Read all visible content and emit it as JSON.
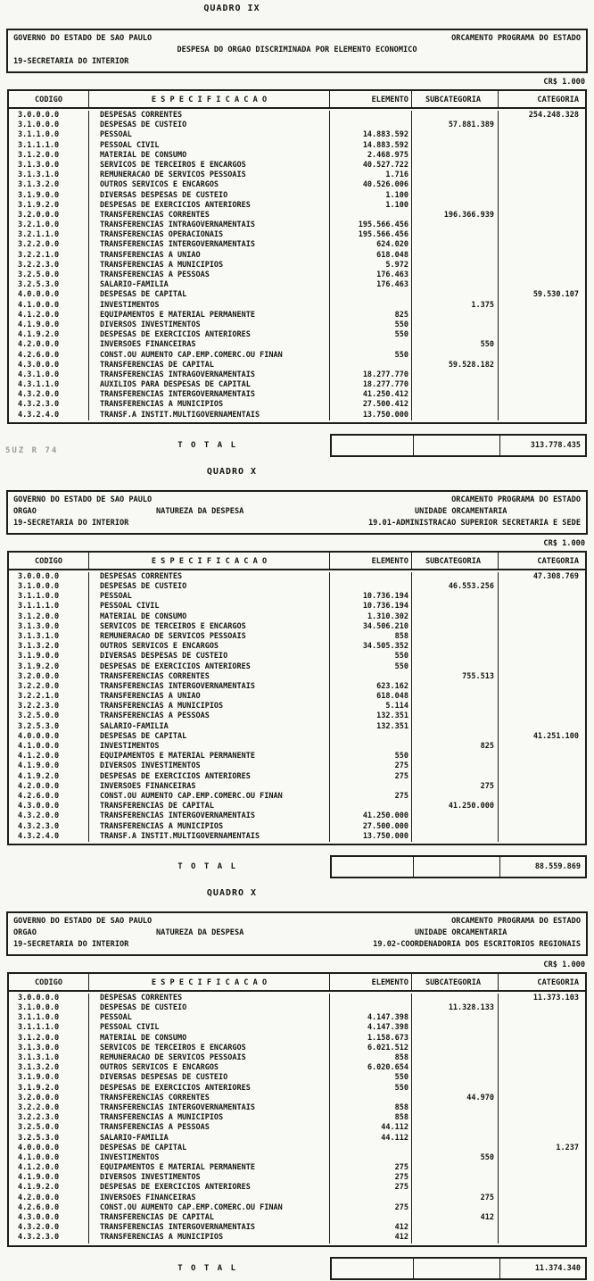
{
  "page": {
    "currency_note": "CR$ 1.000",
    "total_label": "T O T A L",
    "artifact_text": "5UZ R 74"
  },
  "columns": {
    "codigo": "CODIGO",
    "especificacao": "E S P E C I F I C A C A O",
    "elemento": "ELEMENTO",
    "subcategoria": "SUBCATEGORIA",
    "categoria": "CATEGORIA"
  },
  "quadros": [
    {
      "title": "QUADRO IX",
      "header": {
        "org_left": "GOVERNO DO ESTADO DE SAO PAULO",
        "program_right": "ORCAMENTO PROGRAMA DO ESTADO",
        "subtitle": "DESPESA DO ORGAO DISCRIMINADA POR ELEMENTO ECONOMICO",
        "orgao_value": "19-SECRETARIA DO INTERIOR"
      },
      "rows": [
        [
          "3.0.0.0.0",
          "DESPESAS CORRENTES",
          "",
          "",
          "254.248.328"
        ],
        [
          "3.1.0.0.0",
          "DESPESAS DE CUSTEIO",
          "",
          "57.881.389",
          ""
        ],
        [
          "3.1.1.0.0",
          "PESSOAL",
          "14.883.592",
          "",
          ""
        ],
        [
          "3.1.1.1.0",
          "PESSOAL CIVIL",
          "14.883.592",
          "",
          ""
        ],
        [
          "3.1.2.0.0",
          "MATERIAL DE CONSUMO",
          "2.468.975",
          "",
          ""
        ],
        [
          "3.1.3.0.0",
          "SERVICOS DE TERCEIROS E ENCARGOS",
          "40.527.722",
          "",
          ""
        ],
        [
          "3.1.3.1.0",
          "REMUNERACAO DE SERVICOS PESSOAIS",
          "1.716",
          "",
          ""
        ],
        [
          "3.1.3.2.0",
          "OUTROS SERVICOS E ENCARGOS",
          "40.526.006",
          "",
          ""
        ],
        [
          "3.1.9.0.0",
          "DIVERSAS DESPESAS DE CUSTEIO",
          "1.100",
          "",
          ""
        ],
        [
          "3.1.9.2.0",
          "DESPESAS DE EXERCICIOS ANTERIORES",
          "1.100",
          "",
          ""
        ],
        [
          "3.2.0.0.0",
          "TRANSFERENCIAS CORRENTES",
          "",
          "196.366.939",
          ""
        ],
        [
          "3.2.1.0.0",
          "TRANSFERENCIAS INTRAGOVERNAMENTAIS",
          "195.566.456",
          "",
          ""
        ],
        [
          "3.2.1.1.0",
          "TRANSFERENCIAS OPERACIONAIS",
          "195.566.456",
          "",
          ""
        ],
        [
          "3.2.2.0.0",
          "TRANSFERENCIAS INTERGOVERNAMENTAIS",
          "624.020",
          "",
          ""
        ],
        [
          "3.2.2.1.0",
          "TRANSFERENCIAS A UNIAO",
          "618.048",
          "",
          ""
        ],
        [
          "3.2.2.3.0",
          "TRANSFERENCIAS A MUNICIPIOS",
          "5.972",
          "",
          ""
        ],
        [
          "3.2.5.0.0",
          "TRANSFERENCIAS A PESSOAS",
          "176.463",
          "",
          ""
        ],
        [
          "3.2.5.3.0",
          "SALARIO-FAMILIA",
          "176.463",
          "",
          ""
        ],
        [
          "4.0.0.0.0",
          "DESPESAS DE CAPITAL",
          "",
          "",
          "59.530.107"
        ],
        [
          "4.1.0.0.0",
          "INVESTIMENTOS",
          "",
          "1.375",
          ""
        ],
        [
          "4.1.2.0.0",
          "EQUIPAMENTOS E MATERIAL PERMANENTE",
          "825",
          "",
          ""
        ],
        [
          "4.1.9.0.0",
          "DIVERSOS INVESTIMENTOS",
          "550",
          "",
          ""
        ],
        [
          "4.1.9.2.0",
          "DESPESAS DE EXERCICIOS ANTERIORES",
          "550",
          "",
          ""
        ],
        [
          "4.2.0.0.0",
          "INVERSOES FINANCEIRAS",
          "",
          "550",
          ""
        ],
        [
          "4.2.6.0.0",
          "CONST.OU AUMENTO CAP.EMP.COMERC.OU FINAN",
          "550",
          "",
          ""
        ],
        [
          "4.3.0.0.0",
          "TRANSFERENCIAS DE CAPITAL",
          "",
          "59.528.182",
          ""
        ],
        [
          "4.3.1.0.0",
          "TRANSFERENCIAS INTRAGOVERNAMENTAIS",
          "18.277.770",
          "",
          ""
        ],
        [
          "4.3.1.1.0",
          "AUXILIOS PARA DESPESAS DE CAPITAL",
          "18.277.770",
          "",
          ""
        ],
        [
          "4.3.2.0.0",
          "TRANSFERENCIAS INTERGOVERNAMENTAIS",
          "41.250.412",
          "",
          ""
        ],
        [
          "4.3.2.3.0",
          "TRANSFERENCIAS A MUNICIPIOS",
          "27.500.412",
          "",
          ""
        ],
        [
          "4.3.2.4.0",
          "TRANSF.A INSTIT.MULTIGOVERNAMENTAIS",
          "13.750.000",
          "",
          ""
        ]
      ],
      "total": "313.778.435"
    },
    {
      "title": "QUADRO X",
      "header": {
        "org_left": "GOVERNO DO ESTADO DE SAO PAULO",
        "program_right": "ORCAMENTO PROGRAMA DO ESTADO",
        "orgao_label": "ORGAO",
        "natureza_label": "NATUREZA DA DESPESA",
        "unidade_label": "UNIDADE ORCAMENTARIA",
        "orgao_value": "19-SECRETARIA DO INTERIOR",
        "unidade_value": "19.01-ADMINISTRACAO SUPERIOR SECRETARIA E SEDE"
      },
      "rows": [
        [
          "3.0.0.0.0",
          "DESPESAS CORRENTES",
          "",
          "",
          "47.308.769"
        ],
        [
          "3.1.0.0.0",
          "DESPESAS DE CUSTEIO",
          "",
          "46.553.256",
          ""
        ],
        [
          "3.1.1.0.0",
          "PESSOAL",
          "10.736.194",
          "",
          ""
        ],
        [
          "3.1.1.1.0",
          "PESSOAL CIVIL",
          "10.736.194",
          "",
          ""
        ],
        [
          "3.1.2.0.0",
          "MATERIAL DE CONSUMO",
          "1.310.302",
          "",
          ""
        ],
        [
          "3.1.3.0.0",
          "SERVICOS DE TERCEIROS E ENCARGOS",
          "34.506.210",
          "",
          ""
        ],
        [
          "3.1.3.1.0",
          "REMUNERACAO DE SERVICOS PESSOAIS",
          "858",
          "",
          ""
        ],
        [
          "3.1.3.2.0",
          "OUTROS SERVICOS E ENCARGOS",
          "34.505.352",
          "",
          ""
        ],
        [
          "3.1.9.0.0",
          "DIVERSAS DESPESAS DE CUSTEIO",
          "550",
          "",
          ""
        ],
        [
          "3.1.9.2.0",
          "DESPESAS DE EXERCICIOS ANTERIORES",
          "550",
          "",
          ""
        ],
        [
          "3.2.0.0.0",
          "TRANSFERENCIAS CORRENTES",
          "",
          "755.513",
          ""
        ],
        [
          "3.2.2.0.0",
          "TRANSFERENCIAS INTERGOVERNAMENTAIS",
          "623.162",
          "",
          ""
        ],
        [
          "3.2.2.1.0",
          "TRANSFERENCIAS A UNIAO",
          "618.048",
          "",
          ""
        ],
        [
          "3.2.2.3.0",
          "TRANSFERENCIAS A MUNICIPIOS",
          "5.114",
          "",
          ""
        ],
        [
          "3.2.5.0.0",
          "TRANSFERENCIAS A PESSOAS",
          "132.351",
          "",
          ""
        ],
        [
          "3.2.5.3.0",
          "SALARIO-FAMILIA",
          "132.351",
          "",
          ""
        ],
        [
          "4.0.0.0.0",
          "DESPESAS DE CAPITAL",
          "",
          "",
          "41.251.100"
        ],
        [
          "4.1.0.0.0",
          "INVESTIMENTOS",
          "",
          "825",
          ""
        ],
        [
          "4.1.2.0.0",
          "EQUIPAMENTOS E MATERIAL PERMANENTE",
          "550",
          "",
          ""
        ],
        [
          "4.1.9.0.0",
          "DIVERSOS INVESTIMENTOS",
          "275",
          "",
          ""
        ],
        [
          "4.1.9.2.0",
          "DESPESAS DE EXERCICIOS ANTERIORES",
          "275",
          "",
          ""
        ],
        [
          "4.2.0.0.0",
          "INVERSOES FINANCEIRAS",
          "",
          "275",
          ""
        ],
        [
          "4.2.6.0.0",
          "CONST.OU AUMENTO CAP.EMP.COMERC.OU FINAN",
          "275",
          "",
          ""
        ],
        [
          "4.3.0.0.0",
          "TRANSFERENCIAS DE CAPITAL",
          "",
          "41.250.000",
          ""
        ],
        [
          "4.3.2.0.0",
          "TRANSFERENCIAS INTERGOVERNAMENTAIS",
          "41.250.000",
          "",
          ""
        ],
        [
          "4.3.2.3.0",
          "TRANSFERENCIAS A MUNICIPIOS",
          "27.500.000",
          "",
          ""
        ],
        [
          "4.3.2.4.0",
          "TRANSF.A INSTIT.MULTIGOVERNAMENTAIS",
          "13.750.000",
          "",
          ""
        ]
      ],
      "total": "88.559.869"
    },
    {
      "title": "QUADRO X",
      "header": {
        "org_left": "GOVERNO DO ESTADO DE SAO PAULO",
        "program_right": "ORCAMENTO PROGRAMA DO ESTADO",
        "orgao_label": "ORGAO",
        "natureza_label": "NATUREZA DA DESPESA",
        "unidade_label": "UNIDADE ORCAMENTARIA",
        "orgao_value": "19-SECRETARIA DO INTERIOR",
        "unidade_value": "19.02-COORDENADORIA DOS ESCRITORIOS REGIONAIS"
      },
      "rows": [
        [
          "3.0.0.0.0",
          "DESPESAS CORRENTES",
          "",
          "",
          "11.373.103"
        ],
        [
          "3.1.0.0.0",
          "DESPESAS DE CUSTEIO",
          "",
          "11.328.133",
          ""
        ],
        [
          "3.1.1.0.0",
          "PESSOAL",
          "4.147.398",
          "",
          ""
        ],
        [
          "3.1.1.1.0",
          "PESSOAL CIVIL",
          "4.147.398",
          "",
          ""
        ],
        [
          "3.1.2.0.0",
          "MATERIAL DE CONSUMO",
          "1.158.673",
          "",
          ""
        ],
        [
          "3.1.3.0.0",
          "SERVICOS DE TERCEIROS E ENCARGOS",
          "6.021.512",
          "",
          ""
        ],
        [
          "3.1.3.1.0",
          "REMUNERACAO DE SERVICOS PESSOAIS",
          "858",
          "",
          ""
        ],
        [
          "3.1.3.2.0",
          "OUTROS SERVICOS E ENCARGOS",
          "6.020.654",
          "",
          ""
        ],
        [
          "3.1.9.0.0",
          "DIVERSAS DESPESAS DE CUSTEIO",
          "550",
          "",
          ""
        ],
        [
          "3.1.9.2.0",
          "DESPESAS DE EXERCICIOS ANTERIORES",
          "550",
          "",
          ""
        ],
        [
          "3.2.0.0.0",
          "TRANSFERENCIAS CORRENTES",
          "",
          "44.970",
          ""
        ],
        [
          "3.2.2.0.0",
          "TRANSFERENCIAS INTERGOVERNAMENTAIS",
          "858",
          "",
          ""
        ],
        [
          "3.2.2.3.0",
          "TRANSFERENCIAS A MUNICIPIOS",
          "858",
          "",
          ""
        ],
        [
          "3.2.5.0.0",
          "TRANSFERENCIAS A PESSOAS",
          "44.112",
          "",
          ""
        ],
        [
          "3.2.5.3.0",
          "SALARIO-FAMILIA",
          "44.112",
          "",
          ""
        ],
        [
          "4.0.0.0.0",
          "DESPESAS DE CAPITAL",
          "",
          "",
          "1.237"
        ],
        [
          "4.1.0.0.0",
          "INVESTIMENTOS",
          "",
          "550",
          ""
        ],
        [
          "4.1.2.0.0",
          "EQUIPAMENTOS E MATERIAL PERMANENTE",
          "275",
          "",
          ""
        ],
        [
          "4.1.9.0.0",
          "DIVERSOS INVESTIMENTOS",
          "275",
          "",
          ""
        ],
        [
          "4.1.9.2.0",
          "DESPESAS DE EXERCICIOS ANTERIORES",
          "275",
          "",
          ""
        ],
        [
          "4.2.0.0.0",
          "INVERSOES FINANCEIRAS",
          "",
          "275",
          ""
        ],
        [
          "4.2.6.0.0",
          "CONST.OU AUMENTO CAP.EMP.COMERC.OU FINAN",
          "275",
          "",
          ""
        ],
        [
          "4.3.0.0.0",
          "TRANSFERENCIAS DE CAPITAL",
          "",
          "412",
          ""
        ],
        [
          "4.3.2.0.0",
          "TRANSFERENCIAS INTERGOVERNAMENTAIS",
          "412",
          "",
          ""
        ],
        [
          "4.3.2.3.0",
          "TRANSFERENCIAS A MUNICIPIOS",
          "412",
          "",
          ""
        ]
      ],
      "total": "11.374.340"
    }
  ]
}
